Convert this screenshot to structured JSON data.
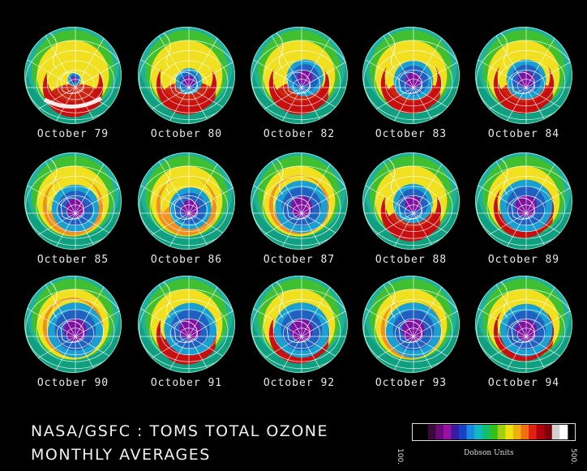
{
  "image": {
    "description_free": true
  },
  "maps": [
    {
      "label": "October 79",
      "hole": 0.1,
      "hole_dx": 0.03,
      "hole_dy": 0.08,
      "ring": "red",
      "ring_shift": 0.25
    },
    {
      "label": "October 80",
      "hole": 0.2,
      "hole_dx": 0.05,
      "hole_dy": 0.12,
      "ring": "red",
      "ring_shift": 0.2
    },
    {
      "label": "October 82",
      "hole": 0.28,
      "hole_dx": 0.12,
      "hole_dy": 0.05,
      "ring": "red",
      "ring_shift": 0.2
    },
    {
      "label": "October 83",
      "hole": 0.3,
      "hole_dx": 0.05,
      "hole_dy": 0.1,
      "ring": "red",
      "ring_shift": 0.18
    },
    {
      "label": "October 84",
      "hole": 0.3,
      "hole_dx": 0.05,
      "hole_dy": 0.08,
      "ring": "red",
      "ring_shift": 0.18
    },
    {
      "label": "October 85",
      "hole": 0.36,
      "hole_dx": 0.05,
      "hole_dy": 0.15,
      "ring": "orange",
      "ring_shift": 0.1
    },
    {
      "label": "October 86",
      "hole": 0.32,
      "hole_dx": 0.08,
      "hole_dy": 0.15,
      "ring": "orange",
      "ring_shift": 0.1
    },
    {
      "label": "October 87",
      "hole": 0.4,
      "hole_dx": 0.05,
      "hole_dy": 0.12,
      "ring": "orange",
      "ring_shift": 0.08
    },
    {
      "label": "October 88",
      "hole": 0.3,
      "hole_dx": 0.04,
      "hole_dy": 0.05,
      "ring": "red",
      "ring_shift": 0.22
    },
    {
      "label": "October 89",
      "hole": 0.4,
      "hole_dx": 0.05,
      "hole_dy": 0.1,
      "ring": "red",
      "ring_shift": 0.15
    },
    {
      "label": "October 90",
      "hole": 0.42,
      "hole_dx": 0.05,
      "hole_dy": 0.12,
      "ring": "orange",
      "ring_shift": 0.06
    },
    {
      "label": "October 91",
      "hole": 0.4,
      "hole_dx": 0.08,
      "hole_dy": 0.1,
      "ring": "red",
      "ring_shift": 0.22
    },
    {
      "label": "October 92",
      "hole": 0.42,
      "hole_dx": 0.05,
      "hole_dy": 0.12,
      "ring": "red",
      "ring_shift": 0.2
    },
    {
      "label": "October 93",
      "hole": 0.42,
      "hole_dx": 0.05,
      "hole_dy": 0.12,
      "ring": "orange",
      "ring_shift": 0.1
    },
    {
      "label": "October 94",
      "hole": 0.4,
      "hole_dx": 0.05,
      "hole_dy": 0.12,
      "ring": "red",
      "ring_shift": 0.15
    }
  ],
  "footer": {
    "title_line_1": "NASA/GSFC : TOMS TOTAL OZONE",
    "title_line_2": "MONTHLY AVERAGES"
  },
  "colorbar": {
    "min_label": "100.",
    "max_label": "500.",
    "unit_label": "Dobson Units",
    "colors": [
      "#000000",
      "#3a0a3a",
      "#6a0a7a",
      "#9a10a0",
      "#3a1aa0",
      "#1a40c8",
      "#1a8ae0",
      "#10b8c0",
      "#10c070",
      "#30c020",
      "#a0d010",
      "#f0e010",
      "#f0b010",
      "#f07010",
      "#e02010",
      "#b00010",
      "#800008",
      "#d0d0d0",
      "#ffffff"
    ]
  },
  "palette": {
    "background": "#000000",
    "ocean_far": "#10a080",
    "outer": "#20b0a0",
    "green": "#40c030",
    "yellow": "#f0e020",
    "orange": "#f09020",
    "red": "#c81010",
    "hole_edge": "#1aa0d0",
    "hole_mid": "#2060c0",
    "hole_core": "#8010a0"
  }
}
